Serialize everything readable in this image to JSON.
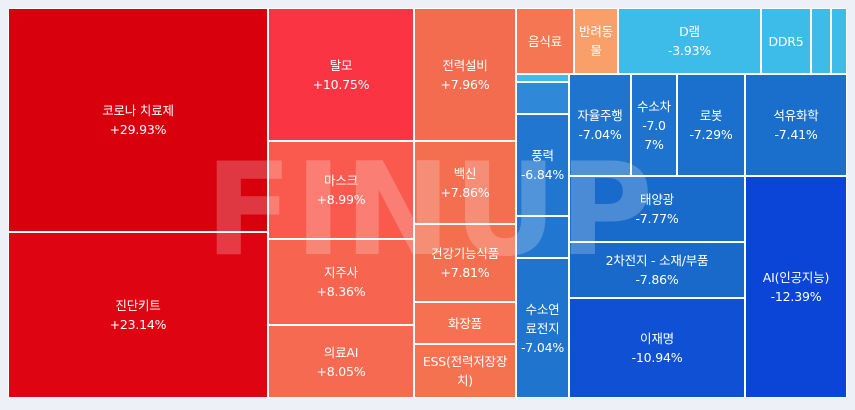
{
  "watermark": "FINUP",
  "tiles": [
    {
      "key": "corona",
      "name": "코로나 치료제",
      "change": "+29.93%",
      "color": "#d8000d"
    },
    {
      "key": "diag",
      "name": "진단키트",
      "change": "+23.14%",
      "color": "#df0411"
    },
    {
      "key": "talmo",
      "name": "탈모",
      "change": "+10.75%",
      "color": "#fb3444"
    },
    {
      "key": "mask",
      "name": "마스크",
      "change": "+8.99%",
      "color": "#f95a4d"
    },
    {
      "key": "holding",
      "name": "지주사",
      "change": "+8.36%",
      "color": "#f76550"
    },
    {
      "key": "medai",
      "name": "의료AI",
      "change": "+8.05%",
      "color": "#f56a50"
    },
    {
      "key": "power",
      "name": "전력설비",
      "change": "+7.96%",
      "color": "#f46c50"
    },
    {
      "key": "vaccine",
      "name": "백신",
      "change": "+7.86%",
      "color": "#f46e50"
    },
    {
      "key": "health",
      "name": "건강기능식품",
      "change": "+7.81%",
      "color": "#f46f50"
    },
    {
      "key": "cosmetic",
      "name": "화장품",
      "change": "",
      "color": "#f57151"
    },
    {
      "key": "ess",
      "name": "ESS(전력저장장치)",
      "change": "",
      "color": "#f57251"
    },
    {
      "key": "food",
      "name": "음식료",
      "change": "",
      "color": "#f47653"
    },
    {
      "key": "pet",
      "name": "반려동물",
      "change": "",
      "color": "#f9a06a"
    },
    {
      "key": "dram",
      "name": "D램",
      "change": "-3.93%",
      "color": "#3dbbe9"
    },
    {
      "key": "ddr5",
      "name": "DDR5",
      "change": "",
      "color": "#3dbbe9"
    },
    {
      "key": "s1",
      "name": "",
      "change": "",
      "color": "#3dbbe9"
    },
    {
      "key": "s2",
      "name": "",
      "change": "",
      "color": "#3dbbe9"
    },
    {
      "key": "s3",
      "name": "",
      "change": "",
      "color": "#3dbbe9"
    },
    {
      "key": "s4",
      "name": "",
      "change": "",
      "color": "#2f88d8"
    },
    {
      "key": "wind",
      "name": "풍력",
      "change": "-6.84%",
      "color": "#2176cf"
    },
    {
      "key": "s5",
      "name": "",
      "change": "",
      "color": "#2176cf"
    },
    {
      "key": "fuelcell",
      "name": "수소연료전지",
      "change": "-7.04%",
      "color": "#1f74ce"
    },
    {
      "key": "auto",
      "name": "자율주행",
      "change": "-7.04%",
      "color": "#1f74ce"
    },
    {
      "key": "h2car",
      "name": "수소차",
      "change": "-7.07%",
      "color": "#1e73ce"
    },
    {
      "key": "robot",
      "name": "로봇",
      "change": "-7.29%",
      "color": "#1c70cd"
    },
    {
      "key": "petro",
      "name": "석유화학",
      "change": "-7.41%",
      "color": "#1a6ecc"
    },
    {
      "key": "solar",
      "name": "태양광",
      "change": "-7.77%",
      "color": "#196bcb"
    },
    {
      "key": "battery",
      "name": "2차전지 - 소재/부품",
      "change": "-7.86%",
      "color": "#1869ca"
    },
    {
      "key": "ljm",
      "name": "이재명",
      "change": "-10.94%",
      "color": "#0f50d4"
    },
    {
      "key": "ai",
      "name": "AI(인공지능)",
      "change": "-12.39%",
      "color": "#0b45d8"
    }
  ]
}
